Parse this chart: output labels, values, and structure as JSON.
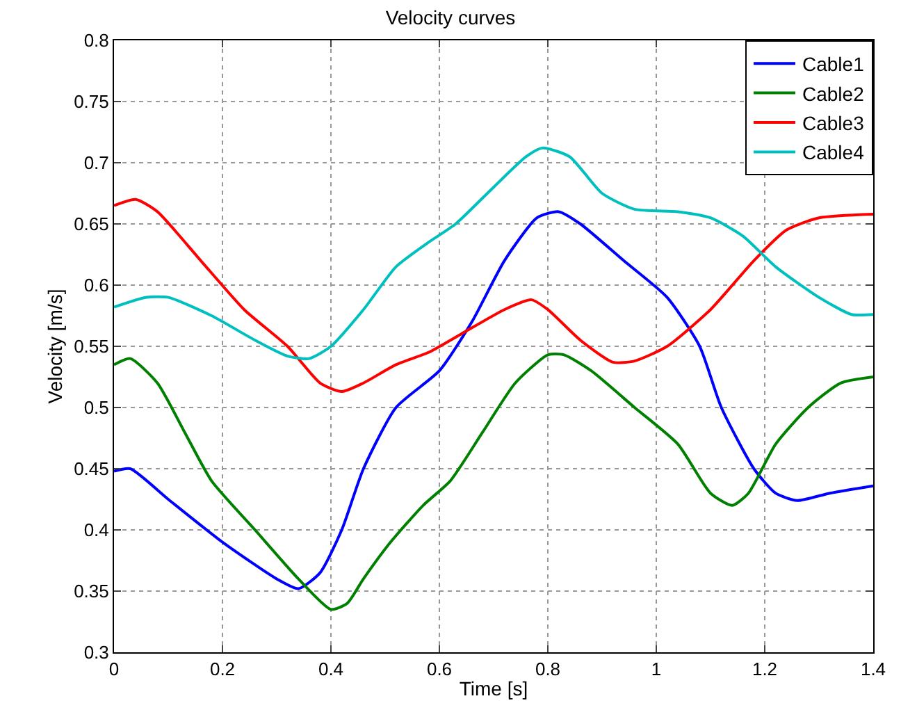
{
  "chart_data": {
    "type": "line",
    "title": "Velocity curves",
    "xlabel": "Time [s]",
    "ylabel": "Velocity [m/s]",
    "xlim": [
      0,
      1.4
    ],
    "xticks": [
      0,
      0.2,
      0.4,
      0.6,
      0.8,
      1,
      1.2,
      1.4
    ],
    "ylim": [
      0.3,
      0.8
    ],
    "yticks": [
      0.3,
      0.35,
      0.4,
      0.45,
      0.5,
      0.55,
      0.6,
      0.65,
      0.7,
      0.75,
      0.8
    ],
    "grid": true,
    "legend": "top right",
    "marker": "none",
    "line_style": "solid",
    "series": [
      {
        "name": "Cable1",
        "color": "#0000ff",
        "x": [
          0,
          0.03,
          0.1,
          0.2,
          0.3,
          0.34,
          0.38,
          0.42,
          0.46,
          0.52,
          0.6,
          0.66,
          0.72,
          0.78,
          0.82,
          0.86,
          0.94,
          1.02,
          1.08,
          1.12,
          1.18,
          1.22,
          1.26,
          1.32,
          1.4
        ],
        "values": [
          0.448,
          0.45,
          0.425,
          0.39,
          0.36,
          0.352,
          0.365,
          0.4,
          0.45,
          0.5,
          0.53,
          0.57,
          0.62,
          0.655,
          0.66,
          0.65,
          0.62,
          0.59,
          0.55,
          0.5,
          0.45,
          0.43,
          0.424,
          0.43,
          0.436
        ]
      },
      {
        "name": "Cable2",
        "color": "#008000",
        "x": [
          0,
          0.03,
          0.08,
          0.13,
          0.18,
          0.26,
          0.34,
          0.4,
          0.43,
          0.46,
          0.51,
          0.57,
          0.62,
          0.68,
          0.74,
          0.8,
          0.83,
          0.88,
          0.96,
          1.04,
          1.1,
          1.14,
          1.17,
          1.22,
          1.28,
          1.34,
          1.4
        ],
        "values": [
          0.535,
          0.54,
          0.52,
          0.48,
          0.44,
          0.4,
          0.36,
          0.335,
          0.34,
          0.36,
          0.39,
          0.42,
          0.44,
          0.48,
          0.52,
          0.543,
          0.543,
          0.53,
          0.5,
          0.47,
          0.43,
          0.42,
          0.43,
          0.47,
          0.5,
          0.52,
          0.525
        ]
      },
      {
        "name": "Cable3",
        "color": "#ff0000",
        "x": [
          0,
          0.04,
          0.08,
          0.16,
          0.24,
          0.32,
          0.38,
          0.42,
          0.46,
          0.52,
          0.58,
          0.64,
          0.72,
          0.77,
          0.8,
          0.86,
          0.92,
          0.96,
          1.02,
          1.1,
          1.18,
          1.24,
          1.3,
          1.4
        ],
        "values": [
          0.665,
          0.67,
          0.66,
          0.62,
          0.58,
          0.55,
          0.52,
          0.513,
          0.52,
          0.535,
          0.545,
          0.56,
          0.58,
          0.588,
          0.58,
          0.555,
          0.537,
          0.538,
          0.55,
          0.58,
          0.62,
          0.645,
          0.655,
          0.658
        ]
      },
      {
        "name": "Cable4",
        "color": "#00bfbf",
        "x": [
          0,
          0.06,
          0.1,
          0.18,
          0.26,
          0.32,
          0.36,
          0.4,
          0.46,
          0.52,
          0.58,
          0.63,
          0.7,
          0.76,
          0.79,
          0.84,
          0.9,
          0.96,
          1.04,
          1.1,
          1.16,
          1.22,
          1.3,
          1.36,
          1.4
        ],
        "values": [
          0.582,
          0.59,
          0.59,
          0.575,
          0.555,
          0.542,
          0.54,
          0.55,
          0.58,
          0.615,
          0.635,
          0.65,
          0.68,
          0.705,
          0.712,
          0.705,
          0.675,
          0.662,
          0.66,
          0.655,
          0.64,
          0.615,
          0.59,
          0.576,
          0.576
        ]
      }
    ]
  }
}
